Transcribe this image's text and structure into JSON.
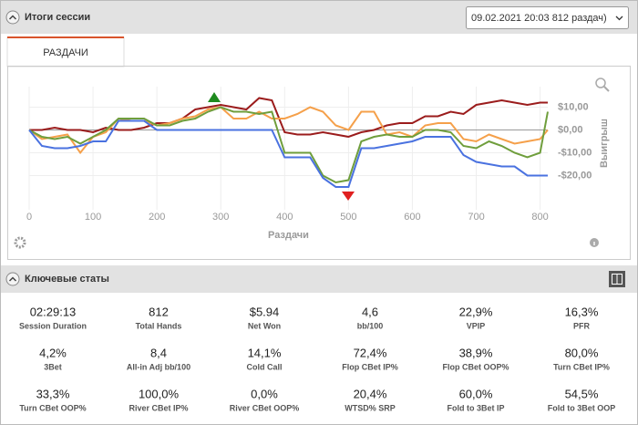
{
  "header": {
    "title": "Итоги сессии",
    "session": "09.02.2021 20:03 812 раздач)"
  },
  "tab": "РАЗДАЧИ",
  "chart_data": {
    "type": "line",
    "xlabel": "Раздачи",
    "ylabel": "Выигрыш",
    "x": [
      0,
      20,
      40,
      60,
      80,
      100,
      120,
      140,
      160,
      180,
      200,
      220,
      240,
      260,
      280,
      300,
      320,
      340,
      360,
      380,
      400,
      420,
      440,
      460,
      480,
      500,
      520,
      540,
      560,
      580,
      600,
      620,
      640,
      660,
      680,
      700,
      720,
      740,
      760,
      780,
      800,
      812
    ],
    "series": [
      {
        "color": "#9b1c1c",
        "values": [
          0,
          0,
          1,
          0,
          0,
          -1,
          1,
          0,
          0,
          1,
          3,
          3,
          5,
          9,
          10,
          11,
          10,
          9,
          14,
          13,
          -1,
          -2,
          -2,
          -1,
          -2,
          -3,
          -1,
          0,
          2,
          3,
          3,
          6,
          6,
          8,
          7,
          11,
          12,
          13,
          12,
          11,
          12,
          12
        ]
      },
      {
        "color": "#f5a04a",
        "values": [
          0,
          -4,
          -3,
          -2,
          -10,
          -3,
          -1,
          5,
          4,
          4,
          2,
          3,
          5,
          6,
          9,
          10,
          5,
          5,
          8,
          5,
          5,
          7,
          10,
          8,
          2,
          0,
          8,
          8,
          -2,
          -1,
          -3,
          2,
          3,
          3,
          -4,
          -5,
          -2,
          -4,
          -6,
          -5,
          -4,
          0
        ]
      },
      {
        "color": "#6f9e3c",
        "values": [
          0,
          -3,
          -4,
          -3,
          -6,
          -3,
          0,
          5,
          5,
          5,
          2,
          2,
          4,
          5,
          8,
          10,
          8,
          8,
          7,
          8,
          -10,
          -10,
          -10,
          -20,
          -23,
          -22,
          -5,
          -3,
          -2,
          -3,
          -3,
          0,
          0,
          -1,
          -7,
          -8,
          -5,
          -7,
          -10,
          -12,
          -10,
          8
        ]
      },
      {
        "color": "#4a72e0",
        "values": [
          0,
          -7,
          -8,
          -8,
          -7,
          -5,
          -5,
          4,
          4,
          4,
          0,
          0,
          0,
          0,
          0,
          0,
          0,
          0,
          0,
          0,
          -12,
          -12,
          -12,
          -21,
          -25,
          -25,
          -8,
          -8,
          -7,
          -6,
          -5,
          -3,
          -3,
          -3,
          -11,
          -14,
          -15,
          -16,
          -16,
          -20,
          -20,
          -20
        ]
      }
    ],
    "xlim": [
      0,
      812
    ],
    "xticks": [
      0,
      100,
      200,
      300,
      400,
      500,
      600,
      700,
      800
    ],
    "ylim": [
      -35,
      19
    ],
    "yticks": [
      {
        "value": 10,
        "label": "$10,00"
      },
      {
        "value": 0,
        "label": "$0,00"
      },
      {
        "value": -10,
        "label": "-$10,00"
      },
      {
        "value": -20,
        "label": "-$20,00"
      }
    ],
    "grid": true
  },
  "stats_title": "Ключевые статы",
  "stats": [
    {
      "value": "02:29:13",
      "label": "Session Duration"
    },
    {
      "value": "812",
      "label": "Total Hands"
    },
    {
      "value": "$5.94",
      "label": "Net Won"
    },
    {
      "value": "4,6",
      "label": "bb/100"
    },
    {
      "value": "22,9%",
      "label": "VPIP"
    },
    {
      "value": "16,3%",
      "label": "PFR"
    },
    {
      "value": "4,2%",
      "label": "3Bet"
    },
    {
      "value": "8,4",
      "label": "All-in Adj bb/100"
    },
    {
      "value": "14,1%",
      "label": "Cold Call"
    },
    {
      "value": "72,4%",
      "label": "Flop CBet IP%"
    },
    {
      "value": "38,9%",
      "label": "Flop CBet OOP%"
    },
    {
      "value": "80,0%",
      "label": "Turn CBet IP%"
    },
    {
      "value": "33,3%",
      "label": "Turn CBet OOP%"
    },
    {
      "value": "100,0%",
      "label": "River CBet IP%"
    },
    {
      "value": "0,0%",
      "label": "River CBet OOP%"
    },
    {
      "value": "20,4%",
      "label": "WTSD% SRP"
    },
    {
      "value": "60,0%",
      "label": "Fold to 3Bet IP"
    },
    {
      "value": "54,5%",
      "label": "Fold to 3Bet OOP"
    }
  ]
}
